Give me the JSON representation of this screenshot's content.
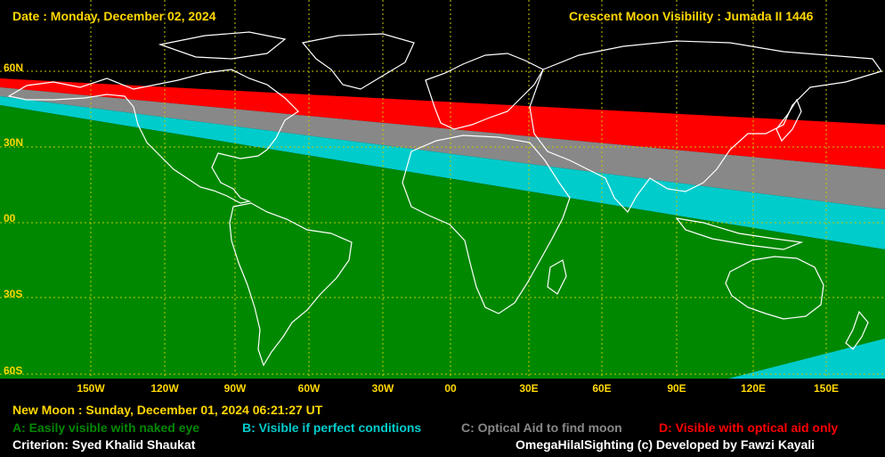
{
  "header": {
    "date": "Date : Monday, December 02, 2024",
    "title": "Crescent Moon Visibility : Jumada II  1446"
  },
  "map": {
    "lat_labels": [
      "60N",
      "30N",
      "00",
      "30S",
      "60S"
    ],
    "lon_labels": [
      "150W",
      "120W",
      "90W",
      "60W",
      "30W",
      "00",
      "30E",
      "60E",
      "90E",
      "120E",
      "150E"
    ],
    "colors": {
      "ocean": "#000000",
      "grid": "#c8c800",
      "coast": "#ffffff",
      "zone_a": "#008800",
      "zone_b": "#00cccc",
      "zone_c": "#888888",
      "zone_d": "#ff0000"
    }
  },
  "footer": {
    "new_moon": "New Moon : Sunday, December 01, 2024  06:21:27  UT",
    "legend": {
      "a": "A: Easily visible with naked eye",
      "b": "B: Visible if perfect conditions",
      "c": "C: Optical Aid to find moon",
      "d": "D: Visible with optical aid only"
    },
    "criterion": "Criterion: Syed Khalid Shaukat",
    "credit": "OmegaHilalSighting  (c)  Developed by Fawzi Kayali"
  }
}
